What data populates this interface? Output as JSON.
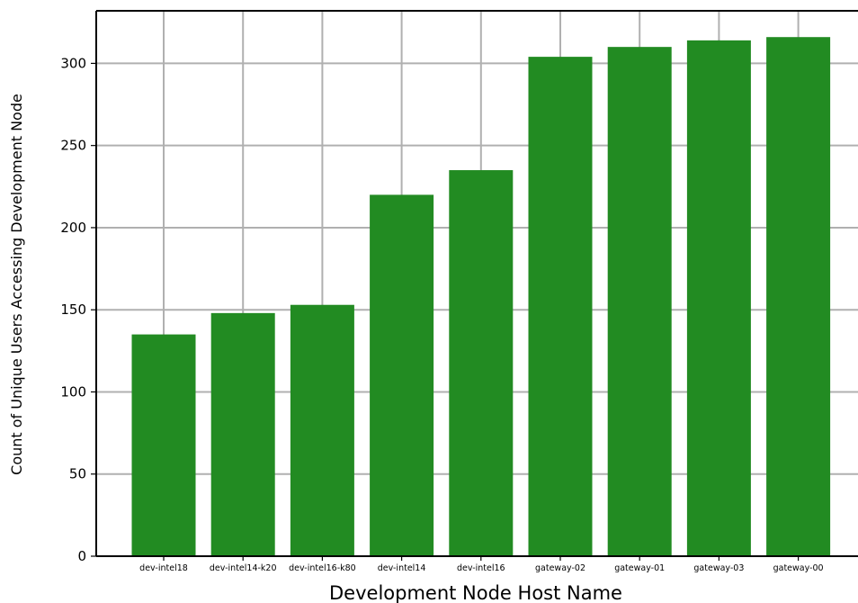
{
  "chart_data": {
    "type": "bar",
    "title": "",
    "xlabel": "Development Node Host Name",
    "ylabel": "Count of Unique Users Accessing Development Node",
    "categories": [
      "dev-intel18",
      "dev-intel14-k20",
      "dev-intel16-k80",
      "dev-intel14",
      "dev-intel16",
      "gateway-02",
      "gateway-01",
      "gateway-03",
      "gateway-00"
    ],
    "values": [
      135,
      148,
      153,
      220,
      235,
      304,
      310,
      314,
      316
    ],
    "ylim": [
      0,
      332
    ],
    "yticks": [
      "0",
      "50",
      "100",
      "150",
      "200",
      "250",
      "300"
    ],
    "grid": true,
    "legend": "none",
    "bar_color": "#228b22"
  }
}
